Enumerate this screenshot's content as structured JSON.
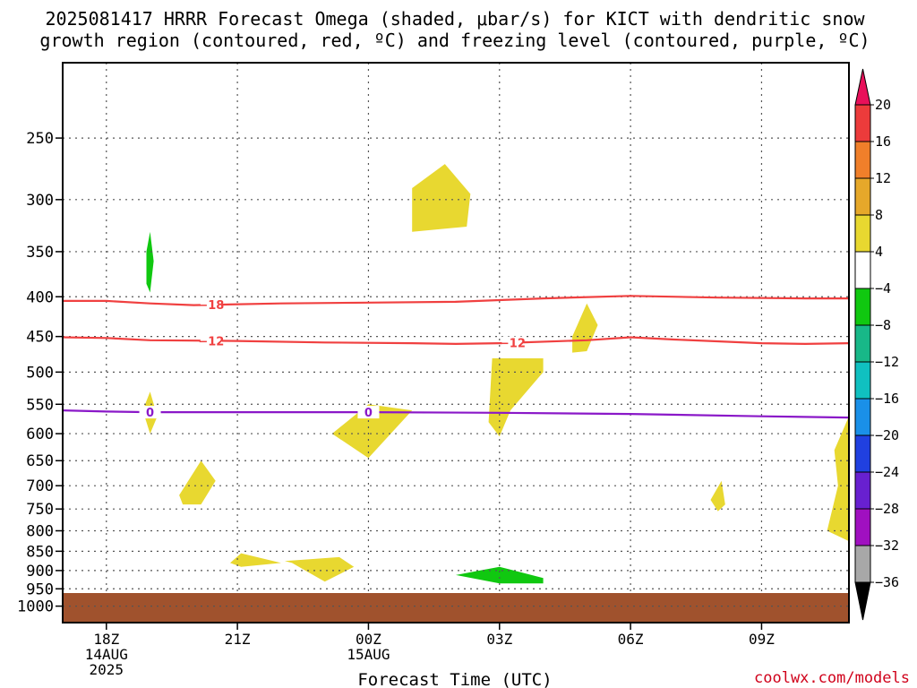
{
  "chart_data": {
    "type": "heatmap",
    "title": "2025081417 HRRR Forecast Omega (shaded, μbar/s) for KICT with dendritic snow growth region (contoured, red, ºC) and freezing level (contoured, purple, ºC)",
    "title_lines": [
      "2025081417 HRRR Forecast Omega (shaded, μbar/s) for KICT with dendritic snow",
      "growth region (contoured, red, ºC) and freezing level (contoured, purple, ºC)"
    ],
    "xlabel": "Forecast Time (UTC)",
    "ylabel": "",
    "x_range_hours_after_17Z_14AUG": [
      0,
      18
    ],
    "xlim_dates": [
      "2025-08-14 17Z",
      "2025-08-15 11Z"
    ],
    "ylim": [
      1050,
      200
    ],
    "y_scale": "log-pressure",
    "grid": true,
    "x_ticks": [
      {
        "value": "18Z",
        "lines": [
          "18Z",
          "14AUG",
          "2025"
        ]
      },
      {
        "value": "21Z",
        "lines": [
          "21Z"
        ]
      },
      {
        "value": "00Z",
        "lines": [
          "00Z",
          "15AUG"
        ]
      },
      {
        "value": "03Z",
        "lines": [
          "03Z"
        ]
      },
      {
        "value": "06Z",
        "lines": [
          "06Z"
        ]
      },
      {
        "value": "09Z",
        "lines": [
          "09Z"
        ]
      }
    ],
    "y_ticks": [
      250,
      300,
      350,
      400,
      450,
      500,
      550,
      600,
      650,
      700,
      750,
      800,
      850,
      900,
      950,
      1000
    ],
    "colorbar": {
      "labels": [
        "20",
        "16",
        "12",
        "8",
        "4",
        "−4",
        "−8",
        "−12",
        "−16",
        "−20",
        "−24",
        "−28",
        "−32",
        "−36"
      ],
      "colors": [
        "#e8105a",
        "#ec3b3b",
        "#f07f2a",
        "#e6a82a",
        "#e8d830",
        "#ffffff",
        "#10c810",
        "#18b888",
        "#10c0c0",
        "#1a90e8",
        "#2040e0",
        "#6820d0",
        "#a010c0",
        "#a8a8a8",
        "#000000"
      ]
    },
    "contours": [
      {
        "name": "dendritic",
        "label": "−18",
        "color": "#f04040",
        "label_at": "18Z+",
        "points": [
          [
            "17Z",
            405
          ],
          [
            "18Z",
            405
          ],
          [
            "19Z",
            408
          ],
          [
            "20Z",
            410
          ],
          [
            "22Z",
            408
          ],
          [
            "00Z",
            407
          ],
          [
            "02Z",
            406
          ],
          [
            "03Z",
            404
          ],
          [
            "04Z",
            402
          ],
          [
            "06Z",
            399
          ],
          [
            "08Z",
            401
          ],
          [
            "10Z",
            402
          ],
          [
            "11Z",
            402
          ]
        ]
      },
      {
        "name": "dendritic",
        "label": "−12",
        "color": "#f04040",
        "label_at": "19Z+",
        "points": [
          [
            "17Z",
            451
          ],
          [
            "18Z",
            452
          ],
          [
            "19Z",
            455
          ],
          [
            "21Z",
            456
          ],
          [
            "23Z",
            458
          ],
          [
            "01Z",
            459
          ],
          [
            "02Z",
            460
          ],
          [
            "03Z",
            459
          ],
          [
            "05Z",
            455
          ],
          [
            "06Z",
            451
          ],
          [
            "07Z",
            454
          ],
          [
            "09Z",
            459
          ],
          [
            "10Z",
            460
          ],
          [
            "11Z",
            459
          ]
        ]
      },
      {
        "name": "freezing",
        "label": "0",
        "color": "#8a18c8",
        "label_at": "19Z & 00Z",
        "points": [
          [
            "17Z",
            560
          ],
          [
            "18Z",
            562
          ],
          [
            "19Z",
            563
          ],
          [
            "21Z",
            563
          ],
          [
            "00Z",
            563
          ],
          [
            "03Z",
            564
          ],
          [
            "06Z",
            566
          ],
          [
            "09Z",
            570
          ],
          [
            "11Z",
            572
          ]
        ]
      }
    ],
    "omega_regions": [
      {
        "range": "4 to 8",
        "color": "#e8d830",
        "points": [
          [
            "01:00Z",
            290
          ],
          [
            "01:45Z",
            270
          ],
          [
            "02:20Z",
            295
          ],
          [
            "02:15Z",
            325
          ],
          [
            "01:00Z",
            330
          ]
        ]
      },
      {
        "range": "4 to 8",
        "color": "#e8d830",
        "points": [
          [
            "04:40Z",
            450
          ],
          [
            "05:00Z",
            408
          ],
          [
            "05:15Z",
            435
          ],
          [
            "05:00Z",
            470
          ],
          [
            "04:40Z",
            472
          ]
        ]
      },
      {
        "range": "4 to 8",
        "color": "#e8d830",
        "points": [
          [
            "02:50Z",
            480
          ],
          [
            "04:00Z",
            480
          ],
          [
            "04:00Z",
            500
          ],
          [
            "03:15Z",
            560
          ],
          [
            "03:00Z",
            605
          ],
          [
            "02:45Z",
            580
          ]
        ]
      },
      {
        "range": "4 to 8",
        "color": "#e8d830",
        "points": [
          [
            "23:10Z",
            600
          ],
          [
            "00:00Z",
            550
          ],
          [
            "01:00Z",
            560
          ],
          [
            "00:00Z",
            645
          ]
        ]
      },
      {
        "range": "4 to 8",
        "color": "#e8d830",
        "points": [
          [
            "19:00Z",
            600
          ],
          [
            "18:50Z",
            560
          ],
          [
            "19:00Z",
            530
          ],
          [
            "19:10Z",
            570
          ]
        ]
      },
      {
        "range": "4 to 8",
        "color": "#e8d830",
        "points": [
          [
            "19:40Z",
            720
          ],
          [
            "20:10Z",
            650
          ],
          [
            "20:30Z",
            690
          ],
          [
            "20:10Z",
            740
          ],
          [
            "19:45Z",
            740
          ]
        ]
      },
      {
        "range": "4 to 8",
        "color": "#e8d830",
        "points": [
          [
            "20:50Z",
            880
          ],
          [
            "21:05Z",
            855
          ],
          [
            "22:00Z",
            880
          ],
          [
            "21:05Z",
            890
          ]
        ]
      },
      {
        "range": "4 to 8",
        "color": "#e8d830",
        "points": [
          [
            "22:05Z",
            875
          ],
          [
            "23:20Z",
            865
          ],
          [
            "23:40Z",
            890
          ],
          [
            "23:00Z",
            930
          ],
          [
            "22:15Z",
            880
          ]
        ]
      },
      {
        "range": "4 to 8",
        "color": "#e8d830",
        "points": [
          [
            "07:50Z",
            730
          ],
          [
            "08:05Z",
            690
          ],
          [
            "08:10Z",
            740
          ],
          [
            "08:00Z",
            755
          ]
        ]
      },
      {
        "range": "4 to 8",
        "color": "#e8d830",
        "points": [
          [
            "11:00Z",
            570
          ],
          [
            "10:40Z",
            630
          ],
          [
            "10:45Z",
            700
          ],
          [
            "10:30Z",
            800
          ],
          [
            "11:00Z",
            825
          ]
        ]
      },
      {
        "range": "-4 to -8",
        "color": "#10c810",
        "points": [
          [
            "18:55Z",
            350
          ],
          [
            "19:00Z",
            330
          ],
          [
            "19:05Z",
            360
          ],
          [
            "19:00Z",
            395
          ],
          [
            "18:55Z",
            385
          ]
        ]
      },
      {
        "range": "-4 to -8",
        "color": "#10c810",
        "points": [
          [
            "02:00Z",
            912
          ],
          [
            "03:00Z",
            890
          ],
          [
            "04:00Z",
            920
          ],
          [
            "04:00Z",
            935
          ],
          [
            "03:00Z",
            935
          ]
        ]
      }
    ],
    "terrain": {
      "color": "#a0522d",
      "top_pressure": 962
    }
  },
  "credit": "coolwx.com/models"
}
